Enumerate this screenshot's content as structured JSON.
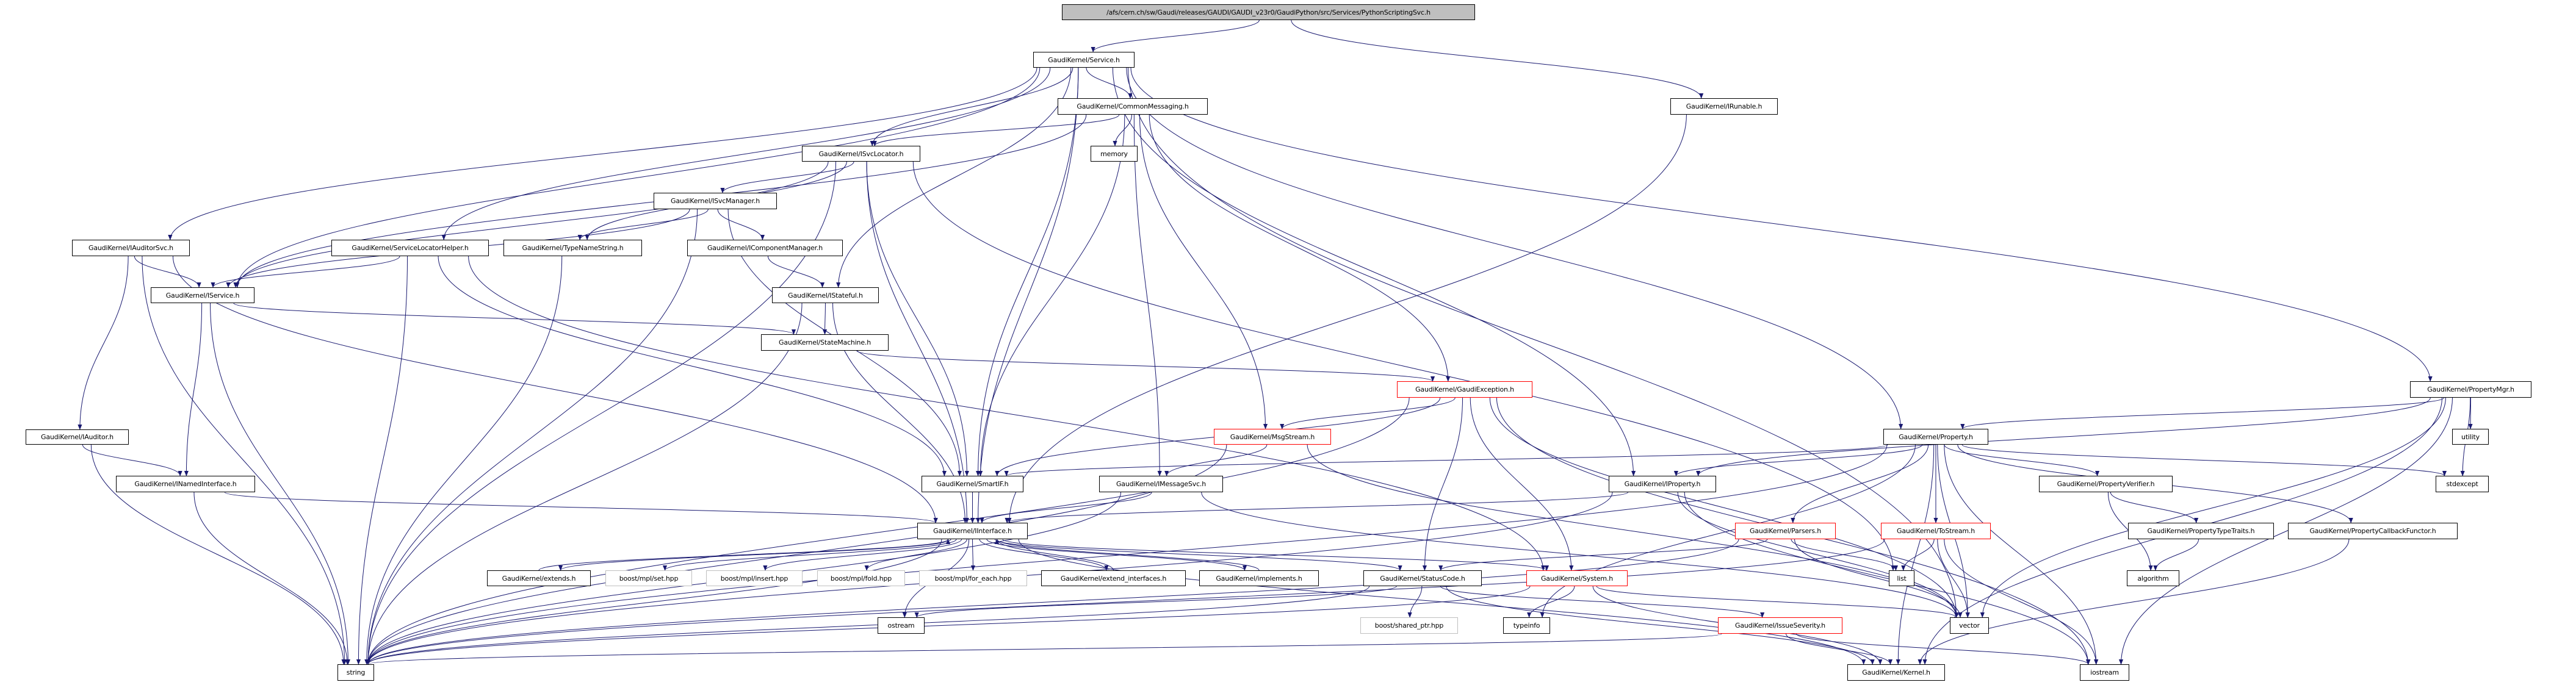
{
  "colors": {
    "edge": "#191970",
    "border": "#000000",
    "incomplete_border": "#ff0000",
    "external_border": "#bfbfbf",
    "root_fill": "#bfbfbf"
  },
  "nodes": [
    {
      "id": "root",
      "label": "/afs/cern.ch/sw/Gaudi/releases/GAUDI/GAUDI_v23r0/GaudiPython/src/Services/PythonScriptingSvc.h",
      "style": "root"
    },
    {
      "id": "service",
      "label": "GaudiKernel/Service.h",
      "style": "normal"
    },
    {
      "id": "irunable",
      "label": "GaudiKernel/IRunable.h",
      "style": "normal"
    },
    {
      "id": "commonmessaging",
      "label": "GaudiKernel/CommonMessaging.h",
      "style": "normal"
    },
    {
      "id": "isvclocator",
      "label": "GaudiKernel/ISvcLocator.h",
      "style": "normal"
    },
    {
      "id": "memory",
      "label": "memory",
      "style": "normal"
    },
    {
      "id": "isvcmanager",
      "label": "GaudiKernel/ISvcManager.h",
      "style": "normal"
    },
    {
      "id": "iauditorsvc",
      "label": "GaudiKernel/IAuditorSvc.h",
      "style": "normal"
    },
    {
      "id": "servicelocatorhelper",
      "label": "GaudiKernel/ServiceLocatorHelper.h",
      "style": "normal"
    },
    {
      "id": "typenamestring",
      "label": "GaudiKernel/TypeNameString.h",
      "style": "normal"
    },
    {
      "id": "icomponentmanager",
      "label": "GaudiKernel/IComponentManager.h",
      "style": "normal"
    },
    {
      "id": "iservice",
      "label": "GaudiKernel/IService.h",
      "style": "normal"
    },
    {
      "id": "istateful",
      "label": "GaudiKernel/IStateful.h",
      "style": "normal"
    },
    {
      "id": "statemachine",
      "label": "GaudiKernel/StateMachine.h",
      "style": "normal"
    },
    {
      "id": "gaudiexception",
      "label": "GaudiKernel/GaudiException.h",
      "style": "red"
    },
    {
      "id": "propertymgr",
      "label": "GaudiKernel/PropertyMgr.h",
      "style": "normal"
    },
    {
      "id": "iauditor",
      "label": "GaudiKernel/IAuditor.h",
      "style": "normal"
    },
    {
      "id": "msgstream",
      "label": "GaudiKernel/MsgStream.h",
      "style": "red"
    },
    {
      "id": "property",
      "label": "GaudiKernel/Property.h",
      "style": "normal"
    },
    {
      "id": "utility",
      "label": "utility",
      "style": "normal"
    },
    {
      "id": "inamedinterface",
      "label": "GaudiKernel/INamedInterface.h",
      "style": "normal"
    },
    {
      "id": "smartif",
      "label": "GaudiKernel/SmartIF.h",
      "style": "normal"
    },
    {
      "id": "imessagesvc",
      "label": "GaudiKernel/IMessageSvc.h",
      "style": "normal"
    },
    {
      "id": "iproperty",
      "label": "GaudiKernel/IProperty.h",
      "style": "normal"
    },
    {
      "id": "propertyverifier",
      "label": "GaudiKernel/PropertyVerifier.h",
      "style": "normal"
    },
    {
      "id": "stdexcept",
      "label": "stdexcept",
      "style": "normal"
    },
    {
      "id": "iinterface",
      "label": "GaudiKernel/IInterface.h",
      "style": "normal"
    },
    {
      "id": "parsers",
      "label": "GaudiKernel/Parsers.h",
      "style": "red"
    },
    {
      "id": "tostream",
      "label": "GaudiKernel/ToStream.h",
      "style": "red"
    },
    {
      "id": "propertytypetraits",
      "label": "GaudiKernel/PropertyTypeTraits.h",
      "style": "normal"
    },
    {
      "id": "propertycallbackfunctor",
      "label": "GaudiKernel/PropertyCallbackFunctor.h",
      "style": "normal"
    },
    {
      "id": "extends",
      "label": "GaudiKernel/extends.h",
      "style": "normal"
    },
    {
      "id": "boostset",
      "label": "boost/mpl/set.hpp",
      "style": "gray"
    },
    {
      "id": "boostinsert",
      "label": "boost/mpl/insert.hpp",
      "style": "gray"
    },
    {
      "id": "boostfold",
      "label": "boost/mpl/fold.hpp",
      "style": "gray"
    },
    {
      "id": "boostforeach",
      "label": "boost/mpl/for_each.hpp",
      "style": "gray"
    },
    {
      "id": "extendinterfaces",
      "label": "GaudiKernel/extend_interfaces.h",
      "style": "normal"
    },
    {
      "id": "implements",
      "label": "GaudiKernel/implements.h",
      "style": "normal"
    },
    {
      "id": "statuscode",
      "label": "GaudiKernel/StatusCode.h",
      "style": "normal"
    },
    {
      "id": "system",
      "label": "GaudiKernel/System.h",
      "style": "red"
    },
    {
      "id": "list",
      "label": "list",
      "style": "normal"
    },
    {
      "id": "algorithm",
      "label": "algorithm",
      "style": "normal"
    },
    {
      "id": "ostream",
      "label": "ostream",
      "style": "normal"
    },
    {
      "id": "boostsharedptr",
      "label": "boost/shared_ptr.hpp",
      "style": "gray"
    },
    {
      "id": "typeinfo",
      "label": "typeinfo",
      "style": "normal"
    },
    {
      "id": "issueseverity",
      "label": "GaudiKernel/IssueSeverity.h",
      "style": "red"
    },
    {
      "id": "vector",
      "label": "vector",
      "style": "normal"
    },
    {
      "id": "string",
      "label": "string",
      "style": "normal"
    },
    {
      "id": "kernel",
      "label": "GaudiKernel/Kernel.h",
      "style": "normal"
    },
    {
      "id": "iostream",
      "label": "iostream",
      "style": "normal"
    }
  ],
  "edges": [
    [
      "root",
      "service"
    ],
    [
      "root",
      "irunable"
    ],
    [
      "service",
      "iauditorsvc"
    ],
    [
      "service",
      "iservice"
    ],
    [
      "service",
      "servicelocatorhelper"
    ],
    [
      "service",
      "isvclocator"
    ],
    [
      "service",
      "commonmessaging"
    ],
    [
      "service",
      "istateful"
    ],
    [
      "service",
      "smartif"
    ],
    [
      "service",
      "iproperty"
    ],
    [
      "service",
      "property"
    ],
    [
      "service",
      "propertymgr"
    ],
    [
      "service",
      "vector"
    ],
    [
      "service",
      "iinterface"
    ],
    [
      "commonmessaging",
      "isvclocator"
    ],
    [
      "commonmessaging",
      "memory"
    ],
    [
      "commonmessaging",
      "iservice"
    ],
    [
      "commonmessaging",
      "smartif"
    ],
    [
      "commonmessaging",
      "imessagesvc"
    ],
    [
      "commonmessaging",
      "msgstream"
    ],
    [
      "commonmessaging",
      "gaudiexception"
    ],
    [
      "isvclocator",
      "isvcmanager"
    ],
    [
      "isvclocator",
      "typenamestring"
    ],
    [
      "isvclocator",
      "iservice"
    ],
    [
      "isvclocator",
      "smartif"
    ],
    [
      "isvclocator",
      "iinterface"
    ],
    [
      "isvclocator",
      "string"
    ],
    [
      "isvclocator",
      "list"
    ],
    [
      "isvcmanager",
      "iservice"
    ],
    [
      "isvcmanager",
      "icomponentmanager"
    ],
    [
      "isvcmanager",
      "typenamestring"
    ],
    [
      "isvcmanager",
      "smartif"
    ],
    [
      "isvcmanager",
      "string"
    ],
    [
      "icomponentmanager",
      "istateful"
    ],
    [
      "istateful",
      "statemachine"
    ],
    [
      "istateful",
      "iinterface"
    ],
    [
      "istateful",
      "string"
    ],
    [
      "statemachine",
      "gaudiexception"
    ],
    [
      "iauditorsvc",
      "iservice"
    ],
    [
      "iauditorsvc",
      "iauditor"
    ],
    [
      "iauditorsvc",
      "string"
    ],
    [
      "iauditorsvc",
      "iinterface"
    ],
    [
      "iauditor",
      "inamedinterface"
    ],
    [
      "iauditor",
      "string"
    ],
    [
      "inamedinterface",
      "iinterface"
    ],
    [
      "inamedinterface",
      "string"
    ],
    [
      "iservice",
      "inamedinterface"
    ],
    [
      "iservice",
      "statemachine"
    ],
    [
      "iservice",
      "string"
    ],
    [
      "servicelocatorhelper",
      "iservice"
    ],
    [
      "servicelocatorhelper",
      "string"
    ],
    [
      "servicelocatorhelper",
      "smartif"
    ],
    [
      "servicelocatorhelper",
      "system"
    ],
    [
      "typenamestring",
      "string"
    ],
    [
      "irunable",
      "iinterface"
    ],
    [
      "gaudiexception",
      "msgstream"
    ],
    [
      "gaudiexception",
      "statuscode"
    ],
    [
      "gaudiexception",
      "system"
    ],
    [
      "gaudiexception",
      "iostream"
    ],
    [
      "gaudiexception",
      "vector"
    ],
    [
      "gaudiexception",
      "smartif"
    ],
    [
      "gaudiexception",
      "string"
    ],
    [
      "msgstream",
      "imessagesvc"
    ],
    [
      "msgstream",
      "string"
    ],
    [
      "msgstream",
      "vector"
    ],
    [
      "imessagesvc",
      "iinterface"
    ],
    [
      "imessagesvc",
      "string"
    ],
    [
      "imessagesvc",
      "vector"
    ],
    [
      "smartif",
      "iinterface"
    ],
    [
      "iinterface",
      "extends"
    ],
    [
      "iinterface",
      "boostset"
    ],
    [
      "iinterface",
      "boostinsert"
    ],
    [
      "iinterface",
      "boostfold"
    ],
    [
      "iinterface",
      "boostforeach"
    ],
    [
      "iinterface",
      "extendinterfaces"
    ],
    [
      "iinterface",
      "implements"
    ],
    [
      "iinterface",
      "system"
    ],
    [
      "iinterface",
      "statuscode"
    ],
    [
      "iinterface",
      "string"
    ],
    [
      "iinterface",
      "ostream"
    ],
    [
      "iinterface",
      "kernel"
    ],
    [
      "extends",
      "iinterface"
    ],
    [
      "extendinterfaces",
      "iinterface"
    ],
    [
      "implements",
      "iinterface"
    ],
    [
      "statuscode",
      "boostsharedptr"
    ],
    [
      "statuscode",
      "issueseverity"
    ],
    [
      "statuscode",
      "kernel"
    ],
    [
      "statuscode",
      "string"
    ],
    [
      "statuscode",
      "ostream"
    ],
    [
      "system",
      "typeinfo"
    ],
    [
      "system",
      "kernel"
    ],
    [
      "system",
      "string"
    ],
    [
      "system",
      "vector"
    ],
    [
      "issueseverity",
      "kernel"
    ],
    [
      "issueseverity",
      "string"
    ],
    [
      "issueseverity",
      "iostream"
    ],
    [
      "propertymgr",
      "property"
    ],
    [
      "propertymgr",
      "iproperty"
    ],
    [
      "propertymgr",
      "utility"
    ],
    [
      "propertymgr",
      "stdexcept"
    ],
    [
      "propertymgr",
      "vector"
    ],
    [
      "propertymgr",
      "iostream"
    ],
    [
      "propertymgr",
      "kernel"
    ],
    [
      "property",
      "iproperty"
    ],
    [
      "property",
      "smartif"
    ],
    [
      "property",
      "parsers"
    ],
    [
      "property",
      "tostream"
    ],
    [
      "property",
      "propertyverifier"
    ],
    [
      "property",
      "propertycallbackfunctor"
    ],
    [
      "property",
      "stdexcept"
    ],
    [
      "property",
      "iostream"
    ],
    [
      "property",
      "string"
    ],
    [
      "property",
      "typeinfo"
    ],
    [
      "property",
      "vector"
    ],
    [
      "property",
      "kernel"
    ],
    [
      "iproperty",
      "iinterface"
    ],
    [
      "iproperty",
      "string"
    ],
    [
      "iproperty",
      "vector"
    ],
    [
      "iproperty",
      "iostream"
    ],
    [
      "parsers",
      "statuscode"
    ],
    [
      "parsers",
      "string"
    ],
    [
      "parsers",
      "list"
    ],
    [
      "parsers",
      "vector"
    ],
    [
      "tostream",
      "list"
    ],
    [
      "tostream",
      "vector"
    ],
    [
      "tostream",
      "iostream"
    ],
    [
      "tostream",
      "string"
    ],
    [
      "propertyverifier",
      "propertytypetraits"
    ],
    [
      "propertyverifier",
      "algorithm"
    ],
    [
      "propertytypetraits",
      "algorithm"
    ],
    [
      "propertycallbackfunctor",
      "kernel"
    ]
  ]
}
